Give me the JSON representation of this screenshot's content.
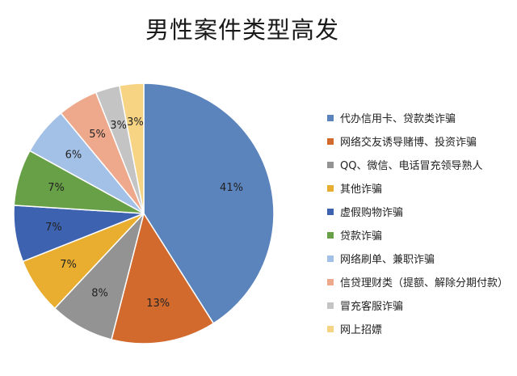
{
  "chart_data": {
    "type": "pie",
    "title": "男性案件类型高发",
    "legend_position": "right",
    "slices": [
      {
        "label": "代办信用卡、贷款类诈骗",
        "value": 41,
        "value_label": "41%",
        "color": "#5b84bd"
      },
      {
        "label": "网络交友诱导赌博、投资诈骗",
        "value": 13,
        "value_label": "13%",
        "color": "#d26a2e"
      },
      {
        "label": "QQ、微信、电话冒充领导熟人",
        "value": 8,
        "value_label": "8%",
        "color": "#939393"
      },
      {
        "label": "其他诈骗",
        "value": 7,
        "value_label": "7%",
        "color": "#e9ae2f"
      },
      {
        "label": "虚假购物诈骗",
        "value": 7,
        "value_label": "7%",
        "color": "#3d62b0"
      },
      {
        "label": "贷款诈骗",
        "value": 7,
        "value_label": "7%",
        "color": "#67a046"
      },
      {
        "label": "网络刷单、兼职诈骗",
        "value": 6,
        "value_label": "6%",
        "color": "#a3c0e6"
      },
      {
        "label": "信贷理财类（提额、解除分期付款）",
        "value": 5,
        "value_label": "5%",
        "color": "#eea98d"
      },
      {
        "label": "冒充客服诈骗",
        "value": 3,
        "value_label": "3%",
        "color": "#c4c4c4"
      },
      {
        "label": "网上招嫖",
        "value": 3,
        "value_label": "3%",
        "color": "#f7d483"
      }
    ]
  }
}
